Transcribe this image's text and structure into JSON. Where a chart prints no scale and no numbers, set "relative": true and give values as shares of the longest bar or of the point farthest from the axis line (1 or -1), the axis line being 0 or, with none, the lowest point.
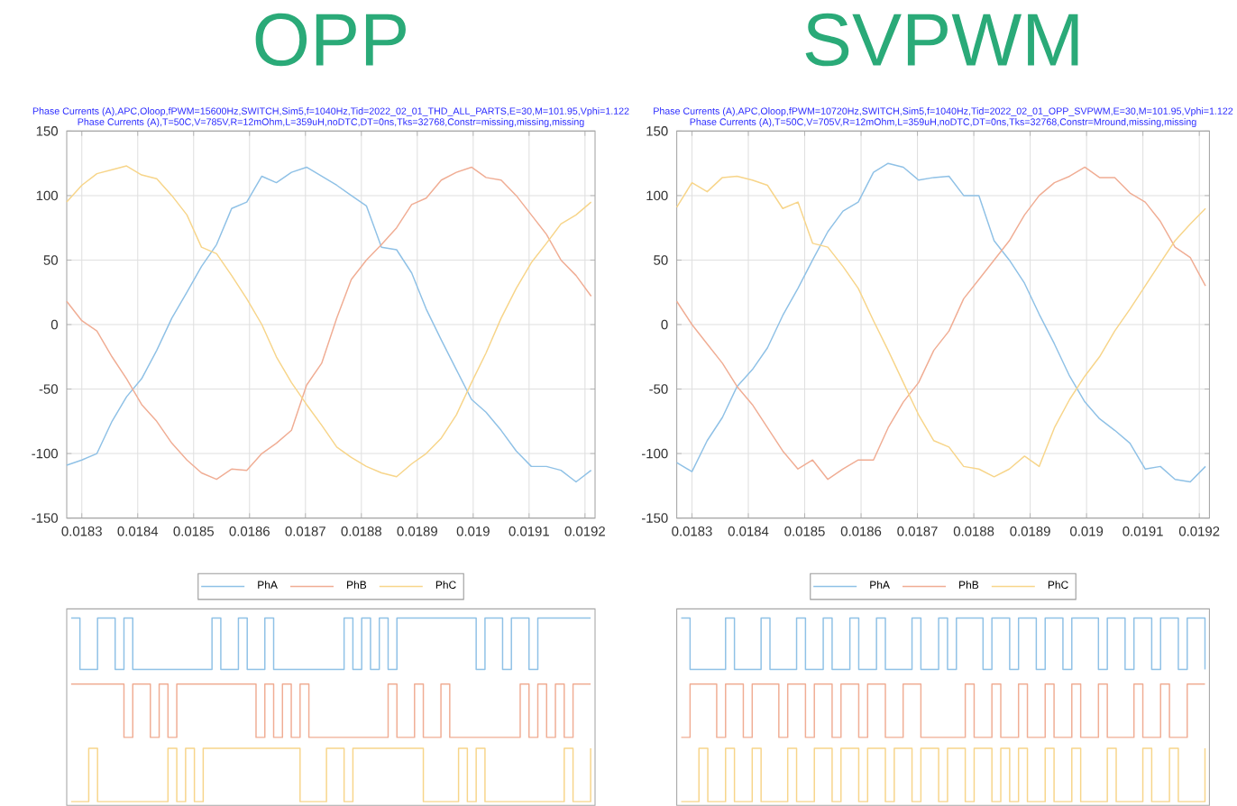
{
  "chart_data": [
    {
      "type": "line",
      "title": "OPP",
      "subtitle": "Phase Currents (A),APC,Oloop,fPWM=15600Hz,SWITCH,Sim5,f=1040Hz,Tid=2022_02_01_THD_ALL_PARTS,E=30,M=101.95,Vphi=1.122",
      "annotations": [
        "Phase Currents (A),T=50C,V=785V,R=12mOhm,L=359uH,noDTC,DT=0ns,Tks=32768,Constr=missing,missing,missing"
      ],
      "grid": true,
      "x": [
        0.018273,
        0.0183,
        0.018327,
        0.018354,
        0.01838,
        0.018407,
        0.018434,
        0.018461,
        0.018488,
        0.018514,
        0.018541,
        0.018568,
        0.018595,
        0.018622,
        0.018648,
        0.018675,
        0.018702,
        0.018729,
        0.018756,
        0.018782,
        0.018809,
        0.018836,
        0.018863,
        0.01889,
        0.018916,
        0.018943,
        0.01897,
        0.018997,
        0.019023,
        0.01905,
        0.019077,
        0.019104,
        0.019131,
        0.019157,
        0.019184,
        0.019211
      ],
      "xlim": [
        0.018273,
        0.019218
      ],
      "xticks": [
        0.0183,
        0.0184,
        0.0185,
        0.0186,
        0.0187,
        0.0188,
        0.0189,
        0.019,
        0.0191,
        0.0192
      ],
      "ylim": [
        -150,
        150
      ],
      "yticks": [
        -150,
        -100,
        -50,
        0,
        50,
        100,
        150
      ],
      "series": [
        {
          "color": "#8fc1e6",
          "values": [
            -109,
            -105,
            -100,
            -75,
            -56,
            -42,
            -20,
            5,
            25,
            45,
            62,
            90,
            95,
            115,
            110,
            118,
            122,
            115,
            108,
            100,
            92,
            60,
            58,
            40,
            12,
            -12,
            -35,
            -58,
            -68,
            -82,
            -98,
            -110,
            -110,
            -113,
            -122,
            -113
          ]
        },
        {
          "color": "#f0ad94",
          "values": [
            18,
            3,
            -5,
            -25,
            -42,
            -62,
            -75,
            -92,
            -105,
            -115,
            -120,
            -112,
            -113,
            -100,
            -92,
            -82,
            -47,
            -30,
            5,
            35,
            50,
            62,
            75,
            93,
            98,
            112,
            118,
            122,
            114,
            112,
            100,
            85,
            70,
            50,
            38,
            22
          ]
        },
        {
          "color": "#f7d58a",
          "values": [
            95,
            108,
            117,
            120,
            123,
            116,
            113,
            100,
            85,
            60,
            55,
            38,
            20,
            0,
            -25,
            -45,
            -62,
            -78,
            -95,
            -103,
            -110,
            -115,
            -118,
            -108,
            -100,
            -88,
            -70,
            -45,
            -22,
            5,
            28,
            48,
            63,
            78,
            85,
            95
          ]
        }
      ]
    },
    {
      "type": "line",
      "title": "SVPWM",
      "subtitle": "Phase Currents (A),APC,Oloop,fPWM=10720Hz,SWITCH,Sim5,f=1040Hz,Tid=2022_02_01_OPP_SVPWM,E=30,M=101.95,Vphi=1.122",
      "annotations": [
        "Phase Currents (A),T=50C,V=705V,R=12mOhm,L=359uH,noDTC,DT=0ns,Tks=32768,Constr=Mround,missing,missing"
      ],
      "grid": true,
      "x": [
        0.018273,
        0.0183,
        0.018327,
        0.018354,
        0.01838,
        0.018407,
        0.018434,
        0.018461,
        0.018488,
        0.018514,
        0.018541,
        0.018568,
        0.018595,
        0.018622,
        0.018648,
        0.018675,
        0.018702,
        0.018729,
        0.018756,
        0.018782,
        0.018809,
        0.018836,
        0.018863,
        0.01889,
        0.018916,
        0.018943,
        0.01897,
        0.018997,
        0.019023,
        0.01905,
        0.019077,
        0.019104,
        0.019131,
        0.019157,
        0.019184,
        0.019211
      ],
      "xlim": [
        0.018273,
        0.019218
      ],
      "xticks": [
        0.0183,
        0.0184,
        0.0185,
        0.0186,
        0.0187,
        0.0188,
        0.0189,
        0.019,
        0.0191,
        0.0192
      ],
      "ylim": [
        -150,
        150
      ],
      "yticks": [
        -150,
        -100,
        -50,
        0,
        50,
        100,
        150
      ],
      "series": [
        {
          "color": "#8fc1e6",
          "values": [
            -107,
            -114,
            -90,
            -72,
            -48,
            -35,
            -18,
            7,
            28,
            50,
            72,
            88,
            95,
            118,
            125,
            122,
            112,
            114,
            115,
            100,
            100,
            65,
            50,
            32,
            8,
            -15,
            -40,
            -60,
            -73,
            -82,
            -92,
            -112,
            -110,
            -120,
            -122,
            -110
          ]
        },
        {
          "color": "#f0ad94",
          "values": [
            18,
            0,
            -15,
            -30,
            -48,
            -62,
            -80,
            -98,
            -112,
            -105,
            -120,
            -112,
            -105,
            -105,
            -80,
            -60,
            -45,
            -20,
            -5,
            20,
            35,
            50,
            65,
            85,
            100,
            110,
            115,
            122,
            114,
            114,
            102,
            95,
            80,
            60,
            52,
            30
          ]
        },
        {
          "color": "#f7d58a",
          "values": [
            91,
            110,
            103,
            114,
            115,
            112,
            108,
            90,
            95,
            63,
            60,
            45,
            28,
            3,
            -20,
            -45,
            -70,
            -90,
            -95,
            -110,
            -112,
            -118,
            -112,
            -102,
            -110,
            -80,
            -58,
            -40,
            -25,
            -5,
            12,
            30,
            48,
            65,
            78,
            90
          ]
        }
      ]
    },
    {
      "type": "step",
      "relative": true,
      "legend": "top",
      "categories": [
        null,
        null,
        null,
        null,
        null,
        null,
        null,
        null,
        null,
        null,
        null,
        null,
        null,
        null,
        null,
        null,
        null,
        null,
        null,
        null,
        null,
        null,
        null,
        null,
        null,
        null,
        null,
        null,
        null,
        null,
        null,
        null,
        null,
        null,
        null,
        null,
        null,
        null,
        null,
        null,
        null,
        null,
        null,
        null,
        null,
        null,
        null,
        null,
        null,
        null,
        null,
        null,
        null,
        null,
        null,
        null,
        null,
        null,
        null,
        null
      ],
      "series": [
        {
          "name": "PhA",
          "color": "#8fc1e6",
          "values": [
            1,
            0.72,
            0.72,
            1,
            1,
            0.72,
            1,
            0.72,
            0.72,
            0.72,
            0.72,
            0.72,
            0.72,
            0.72,
            0.72,
            0.72,
            1,
            0.72,
            0.72,
            1,
            0.72,
            0.72,
            1,
            0.72,
            0.72,
            0.72,
            0.72,
            0.72,
            0.72,
            0.72,
            0.72,
            1,
            0.72,
            1,
            0.72,
            1,
            0.72,
            1,
            1,
            1,
            1,
            1,
            1,
            1,
            1,
            1,
            0.72,
            1,
            1,
            0.72,
            1,
            1,
            0.72,
            1,
            1,
            1,
            1,
            1,
            1,
            1
          ]
        },
        {
          "name": "PhB",
          "color": "#f0ad94",
          "values": [
            0.64,
            0.64,
            0.64,
            0.64,
            0.64,
            0.64,
            0.35,
            0.64,
            0.64,
            0.35,
            0.64,
            0.35,
            0.64,
            0.64,
            0.64,
            0.64,
            0.64,
            0.64,
            0.64,
            0.64,
            0.64,
            0.35,
            0.64,
            0.35,
            0.64,
            0.35,
            0.64,
            0.35,
            0.35,
            0.35,
            0.35,
            0.35,
            0.35,
            0.35,
            0.35,
            0.35,
            0.64,
            0.35,
            0.35,
            0.64,
            0.35,
            0.35,
            0.64,
            0.35,
            0.35,
            0.35,
            0.35,
            0.35,
            0.35,
            0.35,
            0.35,
            0.64,
            0.35,
            0.64,
            0.35,
            0.64,
            0.35,
            0.64,
            0.64,
            0.64
          ]
        },
        {
          "name": "PhC",
          "color": "#f7d58a",
          "values": [
            0,
            0,
            0.29,
            0,
            0,
            0,
            0,
            0,
            0,
            0,
            0,
            0.29,
            0,
            0.29,
            0,
            0.29,
            0.29,
            0.29,
            0.29,
            0.29,
            0.29,
            0.29,
            0.29,
            0.29,
            0.29,
            0.29,
            0,
            0,
            0,
            0.29,
            0.29,
            0,
            0.29,
            0.29,
            0.29,
            0.29,
            0.29,
            0.29,
            0.29,
            0.29,
            0,
            0,
            0,
            0,
            0.29,
            0,
            0.29,
            0,
            0,
            0,
            0,
            0,
            0,
            0,
            0,
            0,
            0.29,
            0,
            0,
            0.29
          ]
        }
      ]
    },
    {
      "type": "step",
      "relative": true,
      "legend": "top",
      "categories": [
        null,
        null,
        null,
        null,
        null,
        null,
        null,
        null,
        null,
        null,
        null,
        null,
        null,
        null,
        null,
        null,
        null,
        null,
        null,
        null,
        null,
        null,
        null,
        null,
        null,
        null,
        null,
        null,
        null,
        null,
        null,
        null,
        null,
        null,
        null,
        null,
        null,
        null,
        null,
        null,
        null,
        null,
        null,
        null,
        null,
        null,
        null,
        null,
        null,
        null,
        null,
        null,
        null,
        null,
        null,
        null,
        null,
        null,
        null,
        null
      ],
      "series": [
        {
          "name": "PhA",
          "color": "#8fc1e6",
          "values": [
            1,
            0.72,
            0.72,
            0.72,
            0.72,
            1,
            0.72,
            0.72,
            0.72,
            1,
            0.72,
            0.72,
            0.72,
            1,
            0.72,
            0.72,
            1,
            0.72,
            0.72,
            1,
            0.72,
            0.72,
            1,
            0.72,
            0.72,
            0.72,
            1,
            0.72,
            0.72,
            1,
            0.72,
            1,
            1,
            1,
            0.72,
            1,
            1,
            0.72,
            1,
            1,
            0.72,
            1,
            1,
            0.72,
            1,
            1,
            1,
            0.72,
            1,
            1,
            0.72,
            1,
            1,
            0.72,
            1,
            1,
            0.72,
            1,
            1,
            0.72
          ]
        },
        {
          "name": "PhB",
          "color": "#f0ad94",
          "values": [
            0.35,
            0.64,
            0.64,
            0.64,
            0.35,
            0.64,
            0.64,
            0.35,
            0.64,
            0.64,
            0.64,
            0.35,
            0.64,
            0.64,
            0.35,
            0.64,
            0.64,
            0.35,
            0.64,
            0.64,
            0.35,
            0.64,
            0.64,
            0.35,
            0.35,
            0.64,
            0.64,
            0.35,
            0.35,
            0.35,
            0.35,
            0.35,
            0.64,
            0.35,
            0.35,
            0.64,
            0.35,
            0.35,
            0.64,
            0.35,
            0.35,
            0.64,
            0.35,
            0.35,
            0.64,
            0.35,
            0.35,
            0.64,
            0.35,
            0.35,
            0.35,
            0.64,
            0.35,
            0.35,
            0.64,
            0.35,
            0.35,
            0.64,
            0.64,
            0.64
          ]
        },
        {
          "name": "PhC",
          "color": "#f7d58a",
          "values": [
            0,
            0,
            0.29,
            0,
            0,
            0.29,
            0,
            0,
            0.29,
            0,
            0,
            0,
            0.29,
            0,
            0,
            0.29,
            0.29,
            0,
            0.29,
            0.29,
            0,
            0.29,
            0.29,
            0,
            0.29,
            0.29,
            0,
            0.29,
            0.29,
            0,
            0.29,
            0.29,
            0,
            0.29,
            0.29,
            0,
            0.29,
            0,
            0.29,
            0,
            0,
            0.29,
            0,
            0,
            0.29,
            0,
            0,
            0,
            0.29,
            0,
            0,
            0,
            0.29,
            0,
            0,
            0.29,
            0,
            0,
            0,
            0.29
          ]
        }
      ]
    }
  ]
}
